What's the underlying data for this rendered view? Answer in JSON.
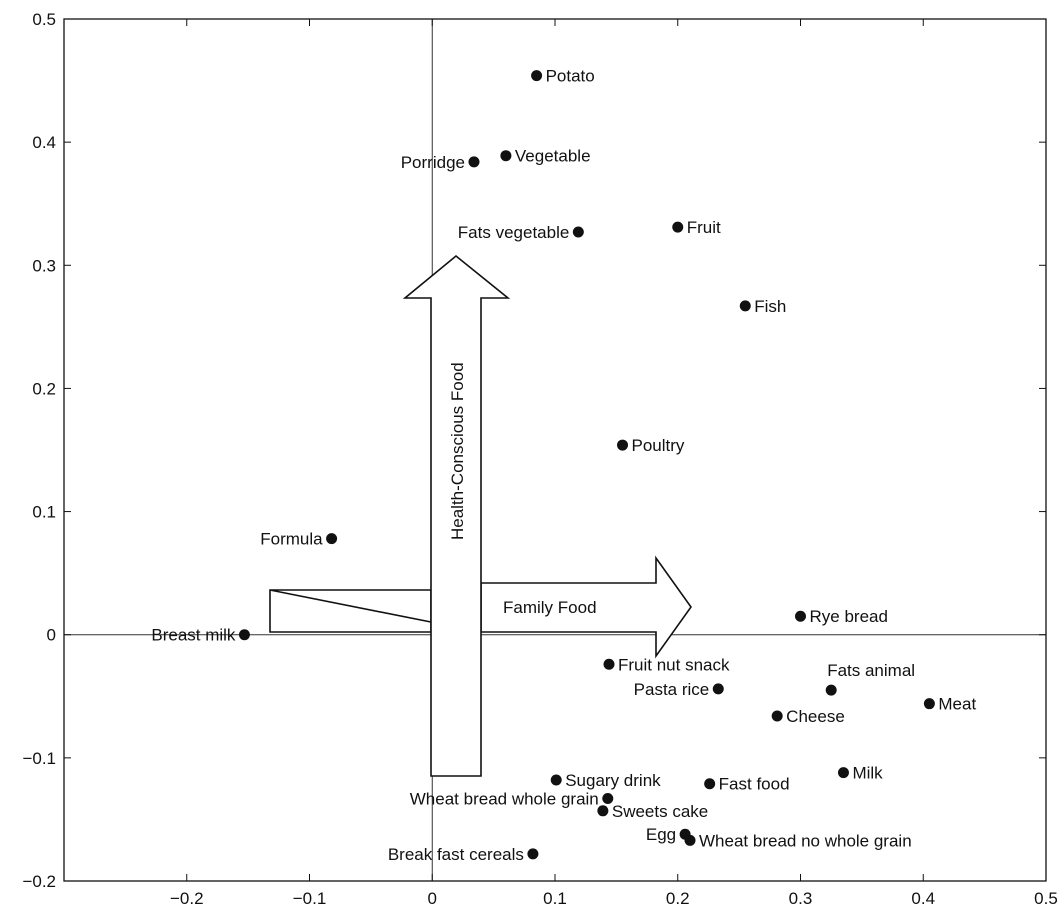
{
  "chart_data": {
    "type": "scatter",
    "title": "",
    "xlabel": "",
    "ylabel": "",
    "xlim": [
      -0.3,
      0.5
    ],
    "ylim": [
      -0.2,
      0.5
    ],
    "grid": false,
    "x_ticks": [
      "−0.2",
      "−0.1",
      "0",
      "0.1",
      "0.2",
      "0.3",
      "0.4",
      "0.5"
    ],
    "x_tick_values": [
      -0.2,
      -0.1,
      0,
      0.1,
      0.2,
      0.3,
      0.4,
      0.5
    ],
    "y_ticks": [
      "−0.2",
      "−0.1",
      "0",
      "0.1",
      "0.2",
      "0.3",
      "0.4",
      "0.5"
    ],
    "y_tick_values": [
      -0.2,
      -0.1,
      0,
      0.1,
      0.2,
      0.3,
      0.4,
      0.5
    ],
    "points": [
      {
        "label": "Potato",
        "x": 0.085,
        "y": 0.454,
        "label_side": "right"
      },
      {
        "label": "Vegetable",
        "x": 0.06,
        "y": 0.389,
        "label_side": "right"
      },
      {
        "label": "Porridge",
        "x": 0.034,
        "y": 0.384,
        "label_side": "left"
      },
      {
        "label": "Fats vegetable",
        "x": 0.119,
        "y": 0.327,
        "label_side": "left"
      },
      {
        "label": "Fruit",
        "x": 0.2,
        "y": 0.331,
        "label_side": "right"
      },
      {
        "label": "Fish",
        "x": 0.255,
        "y": 0.267,
        "label_side": "right"
      },
      {
        "label": "Poultry",
        "x": 0.155,
        "y": 0.154,
        "label_side": "right"
      },
      {
        "label": "Formula",
        "x": -0.082,
        "y": 0.078,
        "label_side": "left"
      },
      {
        "label": "Breast milk",
        "x": -0.153,
        "y": 0.0,
        "label_side": "left"
      },
      {
        "label": "Rye bread",
        "x": 0.3,
        "y": 0.015,
        "label_side": "right"
      },
      {
        "label": "Fruit nut snack",
        "x": 0.144,
        "y": -0.024,
        "label_side": "right"
      },
      {
        "label": "Pasta rice",
        "x": 0.233,
        "y": -0.044,
        "label_side": "left"
      },
      {
        "label": "Fats animal",
        "x": 0.325,
        "y": -0.045,
        "label_side": "above"
      },
      {
        "label": "Meat",
        "x": 0.405,
        "y": -0.056,
        "label_side": "right"
      },
      {
        "label": "Cheese",
        "x": 0.281,
        "y": -0.066,
        "label_side": "right"
      },
      {
        "label": "Milk",
        "x": 0.335,
        "y": -0.112,
        "label_side": "right"
      },
      {
        "label": "Sugary drink",
        "x": 0.101,
        "y": -0.118,
        "label_side": "right"
      },
      {
        "label": "Fast food",
        "x": 0.226,
        "y": -0.121,
        "label_side": "right"
      },
      {
        "label": "Wheat bread whole grain",
        "x": 0.143,
        "y": -0.133,
        "label_side": "left"
      },
      {
        "label": "Sweets cake",
        "x": 0.139,
        "y": -0.143,
        "label_side": "right"
      },
      {
        "label": "Egg",
        "x": 0.206,
        "y": -0.162,
        "label_side": "left"
      },
      {
        "label": "Wheat bread no whole grain",
        "x": 0.21,
        "y": -0.167,
        "label_side": "right"
      },
      {
        "label": "Break fast cereals",
        "x": 0.082,
        "y": -0.178,
        "label_side": "left"
      }
    ],
    "arrows": [
      {
        "label": "Health-Conscious Food",
        "direction": "up"
      },
      {
        "label": "Family Food",
        "direction": "right"
      }
    ]
  }
}
